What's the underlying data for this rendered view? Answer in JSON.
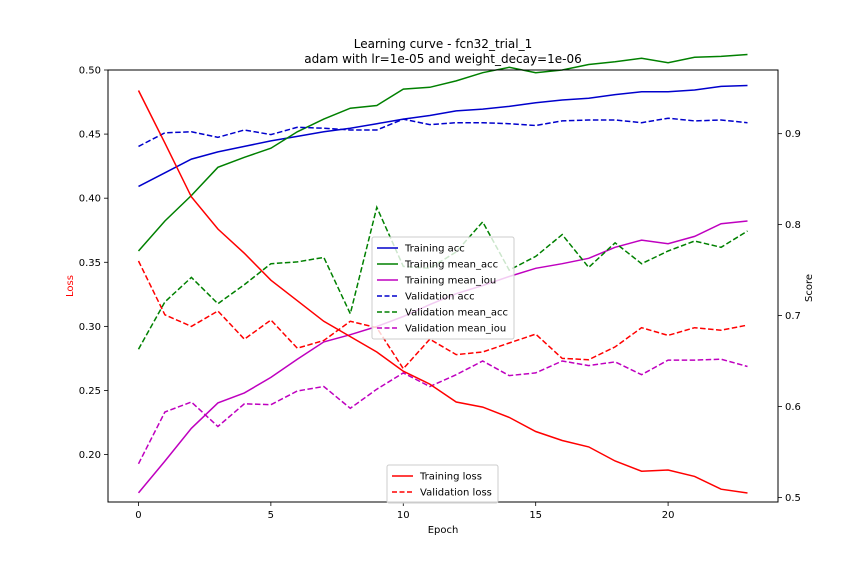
{
  "chart_data": {
    "type": "line",
    "title": "Learning curve - fcn32_trial_1",
    "subtitle": "adam with lr=1e-05 and weight_decay=1e-06",
    "xlabel": "Epoch",
    "ylabel_left": "Loss",
    "ylabel_right": "Score",
    "xlim": [
      -1.15,
      24.15
    ],
    "ylim_left": [
      0.163,
      0.5
    ],
    "ylim_right": [
      0.495,
      0.97
    ],
    "x_ticks": [
      0,
      5,
      10,
      15,
      20
    ],
    "y_ticks_left": [
      0.2,
      0.25,
      0.3,
      0.35,
      0.4,
      0.45,
      0.5
    ],
    "y_tick_labels_left": [
      "0.20",
      "0.25",
      "0.30",
      "0.35",
      "0.40",
      "0.45",
      "0.50"
    ],
    "y_ticks_right": [
      0.5,
      0.6,
      0.7,
      0.8,
      0.9
    ],
    "y_tick_labels_right": [
      "0.5",
      "0.6",
      "0.7",
      "0.8",
      "0.9"
    ],
    "grid": false,
    "x": [
      0,
      1,
      2,
      3,
      4,
      5,
      6,
      7,
      8,
      9,
      10,
      11,
      12,
      13,
      14,
      15,
      16,
      17,
      18,
      19,
      20,
      21,
      22,
      23
    ],
    "loss_series": [
      {
        "name": "Training loss",
        "color": "#ff0000",
        "dash": "solid",
        "values": [
          0.484,
          0.443,
          0.401,
          0.376,
          0.357,
          0.336,
          0.32,
          0.304,
          0.292,
          0.28,
          0.265,
          0.255,
          0.241,
          0.237,
          0.229,
          0.218,
          0.211,
          0.206,
          0.195,
          0.187,
          0.188,
          0.183,
          0.173,
          0.17
        ]
      },
      {
        "name": "Validation loss",
        "color": "#ff0000",
        "dash": "dashed",
        "values": [
          0.351,
          0.309,
          0.3,
          0.312,
          0.29,
          0.305,
          0.283,
          0.289,
          0.304,
          0.299,
          0.267,
          0.29,
          0.278,
          0.28,
          0.287,
          0.294,
          0.275,
          0.274,
          0.284,
          0.299,
          0.293,
          0.299,
          0.297,
          0.301
        ]
      }
    ],
    "score_series": [
      {
        "name": "Training acc",
        "color": "#0000cc",
        "dash": "solid",
        "values": [
          0.842,
          0.857,
          0.872,
          0.88,
          0.886,
          0.892,
          0.897,
          0.902,
          0.906,
          0.911,
          0.916,
          0.92,
          0.925,
          0.927,
          0.93,
          0.934,
          0.937,
          0.939,
          0.943,
          0.946,
          0.946,
          0.948,
          0.952,
          0.953
        ]
      },
      {
        "name": "Training mean_acc",
        "color": "#008000",
        "dash": "solid",
        "values": [
          0.771,
          0.804,
          0.832,
          0.863,
          0.874,
          0.884,
          0.902,
          0.916,
          0.928,
          0.931,
          0.949,
          0.951,
          0.958,
          0.967,
          0.973,
          0.967,
          0.97,
          0.976,
          0.979,
          0.983,
          0.978,
          0.984,
          0.985,
          0.987
        ]
      },
      {
        "name": "Training mean_iou",
        "color": "#bf00bf",
        "dash": "solid",
        "values": [
          0.505,
          0.54,
          0.576,
          0.604,
          0.615,
          0.632,
          0.652,
          0.671,
          0.679,
          0.688,
          0.699,
          0.712,
          0.724,
          0.733,
          0.743,
          0.752,
          0.757,
          0.763,
          0.775,
          0.783,
          0.779,
          0.787,
          0.801,
          0.804
        ]
      },
      {
        "name": "Validation acc",
        "color": "#0000cc",
        "dash": "dashed",
        "values": [
          0.886,
          0.901,
          0.902,
          0.896,
          0.904,
          0.899,
          0.907,
          0.906,
          0.904,
          0.904,
          0.916,
          0.91,
          0.912,
          0.912,
          0.911,
          0.909,
          0.914,
          0.915,
          0.915,
          0.912,
          0.917,
          0.914,
          0.915,
          0.912
        ]
      },
      {
        "name": "Validation mean_acc",
        "color": "#008000",
        "dash": "dashed",
        "values": [
          0.663,
          0.715,
          0.742,
          0.713,
          0.734,
          0.757,
          0.759,
          0.764,
          0.702,
          0.819,
          0.754,
          0.752,
          0.77,
          0.803,
          0.75,
          0.765,
          0.789,
          0.753,
          0.78,
          0.757,
          0.771,
          0.782,
          0.775,
          0.793
        ]
      },
      {
        "name": "Validation mean_iou",
        "color": "#bf00bf",
        "dash": "dashed",
        "values": [
          0.537,
          0.594,
          0.605,
          0.578,
          0.603,
          0.602,
          0.617,
          0.622,
          0.598,
          0.619,
          0.637,
          0.622,
          0.635,
          0.65,
          0.634,
          0.637,
          0.65,
          0.645,
          0.649,
          0.635,
          0.651,
          0.651,
          0.652,
          0.644
        ]
      }
    ],
    "legend_scores_location": "center",
    "legend_loss_location": "lower center"
  }
}
